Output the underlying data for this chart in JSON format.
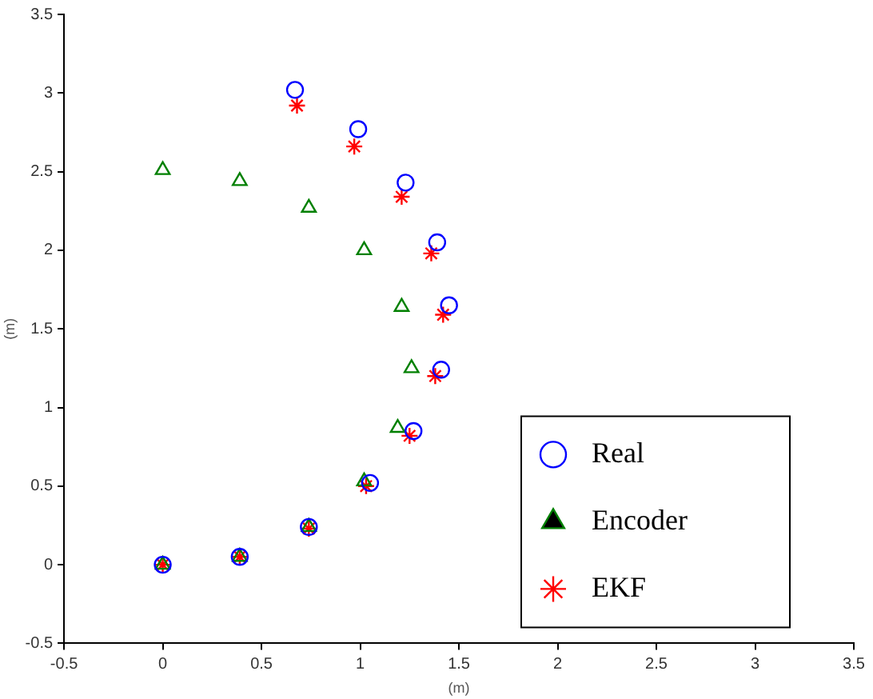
{
  "chart_data": {
    "type": "scatter",
    "xlabel": "(m)",
    "ylabel": "(m)",
    "xlim": [
      -0.5,
      3.5
    ],
    "ylim": [
      -0.5,
      3.5
    ],
    "xticks": [
      -0.5,
      0,
      0.5,
      1,
      1.5,
      2,
      2.5,
      3,
      3.5
    ],
    "yticks": [
      -0.5,
      0,
      0.5,
      1,
      1.5,
      2,
      2.5,
      3,
      3.5
    ],
    "grid": false,
    "legend": "bottom right",
    "series": [
      {
        "name": "Real",
        "color": "#0000ff",
        "marker": "circle",
        "x": [
          0,
          0.39,
          0.74,
          1.05,
          1.27,
          1.41,
          1.45,
          1.39,
          1.23,
          0.99,
          0.67
        ],
        "values": [
          0,
          0.05,
          0.24,
          0.52,
          0.85,
          1.24,
          1.65,
          2.05,
          2.43,
          2.77,
          3.02
        ]
      },
      {
        "name": "Encoder",
        "color": "#008000",
        "marker": "triangle",
        "x": [
          0,
          0.39,
          0.74,
          1.02,
          1.19,
          1.26,
          1.21,
          1.02,
          0.74,
          0.39,
          0
        ],
        "values": [
          0,
          0.05,
          0.24,
          0.53,
          0.87,
          1.25,
          1.64,
          2.0,
          2.27,
          2.44,
          2.51
        ]
      },
      {
        "name": "EKF",
        "color": "#ff0000",
        "marker": "cross",
        "x": [
          0,
          0.39,
          0.74,
          1.03,
          1.25,
          1.38,
          1.42,
          1.36,
          1.21,
          0.97,
          0.68
        ],
        "values": [
          0,
          0.05,
          0.23,
          0.5,
          0.82,
          1.2,
          1.59,
          1.98,
          2.34,
          2.66,
          2.92
        ]
      }
    ]
  }
}
